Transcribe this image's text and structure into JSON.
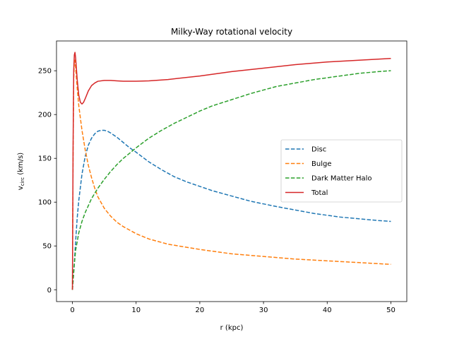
{
  "chart_data": {
    "type": "line",
    "title": "Milky-Way rotational velocity",
    "xlabel": "r (kpc)",
    "ylabel_main": "v",
    "ylabel_sub": "circ",
    "ylabel_unit": " (km/s)",
    "xlim": [
      -2.5,
      52.5
    ],
    "ylim": [
      -13.5,
      284
    ],
    "xticks": [
      0,
      10,
      20,
      30,
      40,
      50
    ],
    "yticks": [
      0,
      50,
      100,
      150,
      200,
      250
    ],
    "grid": false,
    "legend_position": "center-right",
    "series": [
      {
        "name": "Disc",
        "color": "#1f77b4",
        "dash": "dashed",
        "x": [
          0,
          0.25,
          0.5,
          0.75,
          1,
          1.5,
          2,
          2.5,
          3,
          3.5,
          4,
          4.5,
          5,
          5.5,
          6,
          7,
          8,
          9,
          10,
          12,
          14,
          16,
          18,
          20,
          22,
          25,
          28,
          30,
          32,
          35,
          38,
          40,
          42,
          45,
          48,
          50
        ],
        "y": [
          0,
          25,
          55,
          82,
          102,
          132,
          152,
          165,
          173,
          178,
          181,
          182,
          182,
          181,
          179,
          174,
          168,
          162,
          157,
          146,
          137,
          129,
          123,
          118,
          113,
          107,
          101,
          98,
          95,
          91,
          87,
          85,
          83,
          81,
          79,
          78
        ]
      },
      {
        "name": "Bulge",
        "color": "#ff7f0e",
        "dash": "dashed",
        "x": [
          0,
          0.1,
          0.2,
          0.3,
          0.4,
          0.5,
          0.75,
          1,
          1.5,
          2,
          2.5,
          3,
          3.5,
          4,
          5,
          6,
          7,
          8,
          10,
          12,
          15,
          20,
          25,
          30,
          35,
          40,
          45,
          50
        ],
        "y": [
          0,
          150,
          240,
          262,
          262,
          254,
          230,
          210,
          182,
          160,
          142,
          128,
          116,
          106,
          93,
          84,
          77,
          72,
          64,
          58,
          52,
          46,
          41,
          38,
          35,
          33,
          31,
          29
        ]
      },
      {
        "name": "Dark Matter Halo",
        "color": "#2ca02c",
        "dash": "dashed",
        "x": [
          0,
          0.25,
          0.5,
          1,
          1.5,
          2,
          3,
          4,
          5,
          6,
          7,
          8,
          10,
          12,
          14,
          16,
          18,
          20,
          22,
          25,
          28,
          30,
          32,
          35,
          38,
          40,
          42,
          45,
          48,
          50
        ],
        "y": [
          0,
          25,
          45,
          65,
          78,
          88,
          104,
          116,
          126,
          135,
          143,
          150,
          162,
          173,
          182,
          190,
          197,
          204,
          210,
          217,
          224,
          228,
          232,
          236,
          240,
          242,
          244,
          247,
          249,
          250
        ]
      },
      {
        "name": "Total",
        "color": "#d62728",
        "dash": "solid",
        "x": [
          0,
          0.1,
          0.2,
          0.3,
          0.4,
          0.5,
          0.6,
          0.75,
          1,
          1.25,
          1.5,
          1.75,
          2,
          2.5,
          3,
          3.5,
          4,
          5,
          6,
          7,
          8,
          10,
          12,
          15,
          20,
          25,
          30,
          35,
          40,
          45,
          50
        ],
        "y": [
          0,
          160,
          250,
          268,
          271,
          265,
          255,
          240,
          222,
          214,
          212,
          214,
          218,
          227,
          233,
          236,
          238,
          239,
          239,
          238.5,
          238,
          238,
          238.5,
          240,
          244,
          249,
          253,
          257,
          260,
          262,
          264
        ]
      }
    ]
  }
}
